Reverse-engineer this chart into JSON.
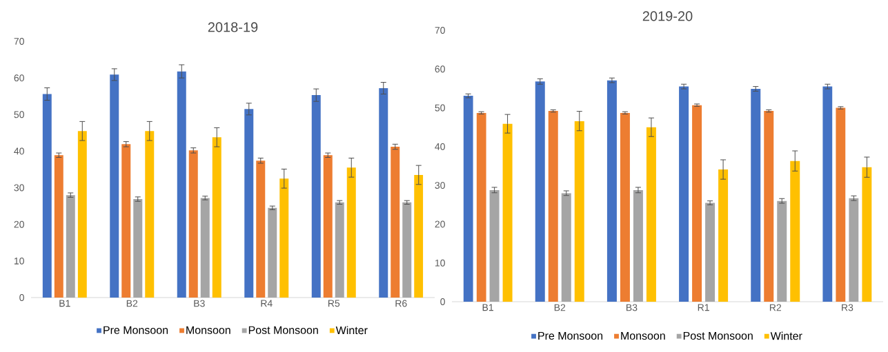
{
  "chart_data": [
    {
      "type": "bar",
      "title": "2018-19",
      "categories": [
        "B1",
        "B2",
        "B3",
        "R4",
        "R5",
        "R6"
      ],
      "ylim": [
        0,
        70
      ],
      "yticks": [
        0,
        10,
        20,
        30,
        40,
        50,
        60,
        70
      ],
      "legend": "bottom",
      "series": [
        {
          "name": "Pre Monsoon",
          "color": "#4472c4",
          "values": [
            55.6,
            60.9,
            61.8,
            51.5,
            55.3,
            57.2
          ],
          "errors": [
            1.7,
            1.6,
            1.8,
            1.6,
            1.7,
            1.6
          ]
        },
        {
          "name": "Monsoon",
          "color": "#ed7d31",
          "values": [
            38.9,
            41.9,
            40.2,
            37.4,
            38.9,
            41.2
          ],
          "errors": [
            0.6,
            0.7,
            0.7,
            0.7,
            0.6,
            0.7
          ]
        },
        {
          "name": "Post Monsoon",
          "color": "#a5a5a5",
          "values": [
            28.0,
            26.9,
            27.2,
            24.5,
            26.0,
            26.0
          ],
          "errors": [
            0.6,
            0.6,
            0.5,
            0.5,
            0.5,
            0.5
          ]
        },
        {
          "name": "Winter",
          "color": "#ffc000",
          "values": [
            45.5,
            45.5,
            43.8,
            32.5,
            35.5,
            33.5
          ],
          "errors": [
            2.6,
            2.6,
            2.6,
            2.6,
            2.6,
            2.6
          ]
        }
      ]
    },
    {
      "type": "bar",
      "title": "2019-20",
      "categories": [
        "B1",
        "B2",
        "B3",
        "R1",
        "R2",
        "R3"
      ],
      "ylim": [
        0,
        70
      ],
      "yticks": [
        0,
        10,
        20,
        30,
        40,
        50,
        60,
        70
      ],
      "legend": "bottom",
      "series": [
        {
          "name": "Pre Monsoon",
          "color": "#4472c4",
          "values": [
            53.1,
            56.8,
            57.1,
            55.5,
            54.9,
            55.5
          ],
          "errors": [
            0.5,
            0.7,
            0.6,
            0.6,
            0.6,
            0.6
          ]
        },
        {
          "name": "Monsoon",
          "color": "#ed7d31",
          "values": [
            48.7,
            49.2,
            48.7,
            50.7,
            49.2,
            50.0
          ],
          "errors": [
            0.3,
            0.3,
            0.3,
            0.3,
            0.3,
            0.3
          ]
        },
        {
          "name": "Post Monsoon",
          "color": "#a5a5a5",
          "values": [
            28.8,
            28.0,
            28.8,
            25.5,
            26.0,
            26.7
          ],
          "errors": [
            0.7,
            0.6,
            0.7,
            0.5,
            0.6,
            0.6
          ]
        },
        {
          "name": "Winter",
          "color": "#ffc000",
          "values": [
            45.9,
            46.6,
            45.0,
            34.1,
            36.3,
            34.7
          ],
          "errors": [
            2.4,
            2.5,
            2.4,
            2.5,
            2.6,
            2.6
          ]
        }
      ]
    }
  ]
}
